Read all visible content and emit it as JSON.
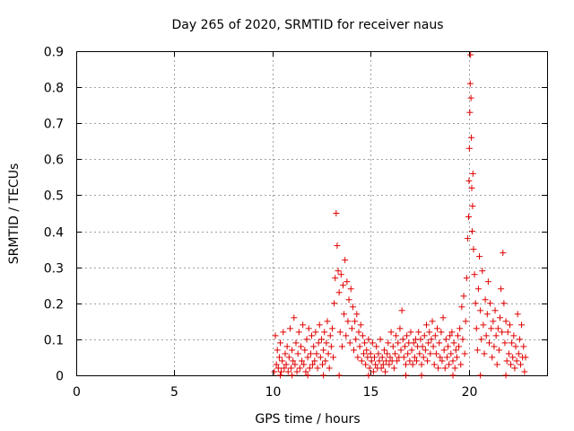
{
  "chart_data": {
    "type": "scatter",
    "title": "Day 265 of 2020, SRMTID for receiver naus",
    "xlabel": "GPS time / hours",
    "ylabel": "SRMTID / TECUs",
    "xlim": [
      0,
      24
    ],
    "ylim": [
      0,
      0.9
    ],
    "xticks": [
      0,
      5,
      10,
      15,
      20
    ],
    "yticks": [
      0,
      0.1,
      0.2,
      0.3,
      0.4,
      0.5,
      0.6,
      0.7,
      0.8,
      0.9
    ],
    "ytick_labels": [
      "0",
      "0.1",
      "0.2",
      "0.3",
      "0.4",
      "0.5",
      "0.6",
      "0.7",
      "0.8",
      "0.9"
    ],
    "grid": true,
    "marker": "+",
    "color": "#e00000",
    "series": [
      {
        "name": "SRMTID",
        "points": [
          [
            10.1,
            0.01
          ],
          [
            10.15,
            0.11
          ],
          [
            10.2,
            0.03
          ],
          [
            10.25,
            0.07
          ],
          [
            10.3,
            0.02
          ],
          [
            10.35,
            0.05
          ],
          [
            10.4,
            0.09
          ],
          [
            10.45,
            0.01
          ],
          [
            10.5,
            0.04
          ],
          [
            10.55,
            0.12
          ],
          [
            10.6,
            0.02
          ],
          [
            10.65,
            0.06
          ],
          [
            10.7,
            0.03
          ],
          [
            10.75,
            0.08
          ],
          [
            10.8,
            0.01
          ],
          [
            10.85,
            0.05
          ],
          [
            10.9,
            0.13
          ],
          [
            10.95,
            0.02
          ],
          [
            11.0,
            0.07
          ],
          [
            11.05,
            0.04
          ],
          [
            11.1,
            0.16
          ],
          [
            11.15,
            0.03
          ],
          [
            11.2,
            0.09
          ],
          [
            11.25,
            0.01
          ],
          [
            11.3,
            0.06
          ],
          [
            11.35,
            0.12
          ],
          [
            11.4,
            0.02
          ],
          [
            11.45,
            0.08
          ],
          [
            11.5,
            0.04
          ],
          [
            11.55,
            0.14
          ],
          [
            11.6,
            0.03
          ],
          [
            11.65,
            0.07
          ],
          [
            11.7,
            0.01
          ],
          [
            11.75,
            0.1
          ],
          [
            11.8,
            0.05
          ],
          [
            11.85,
            0.13
          ],
          [
            11.9,
            0.02
          ],
          [
            11.95,
            0.06
          ],
          [
            12.0,
            0.11
          ],
          [
            12.05,
            0.03
          ],
          [
            12.1,
            0.08
          ],
          [
            12.15,
            0.04
          ],
          [
            12.2,
            0.12
          ],
          [
            12.25,
            0.06
          ],
          [
            12.3,
            0.02
          ],
          [
            12.35,
            0.09
          ],
          [
            12.4,
            0.14
          ],
          [
            12.45,
            0.05
          ],
          [
            12.5,
            0.1
          ],
          [
            12.55,
            0.03
          ],
          [
            12.6,
            0.07
          ],
          [
            12.65,
            0.12
          ],
          [
            12.7,
            0.04
          ],
          [
            12.75,
            0.09
          ],
          [
            12.8,
            0.15
          ],
          [
            12.85,
            0.06
          ],
          [
            12.9,
            0.02
          ],
          [
            12.95,
            0.11
          ],
          [
            13.0,
            0.08
          ],
          [
            13.05,
            0.13
          ],
          [
            13.1,
            0.05
          ],
          [
            13.15,
            0.2
          ],
          [
            13.2,
            0.27
          ],
          [
            13.25,
            0.45
          ],
          [
            13.3,
            0.36
          ],
          [
            13.35,
            0.29
          ],
          [
            13.4,
            0.23
          ],
          [
            13.45,
            0.12
          ],
          [
            13.5,
            0.28
          ],
          [
            13.55,
            0.08
          ],
          [
            13.6,
            0.25
          ],
          [
            13.65,
            0.17
          ],
          [
            13.7,
            0.32
          ],
          [
            13.75,
            0.11
          ],
          [
            13.8,
            0.26
          ],
          [
            13.85,
            0.15
          ],
          [
            13.9,
            0.21
          ],
          [
            13.95,
            0.09
          ],
          [
            14.0,
            0.24
          ],
          [
            14.05,
            0.13
          ],
          [
            14.1,
            0.19
          ],
          [
            14.15,
            0.07
          ],
          [
            14.2,
            0.15
          ],
          [
            14.25,
            0.1
          ],
          [
            14.3,
            0.17
          ],
          [
            14.35,
            0.05
          ],
          [
            14.4,
            0.12
          ],
          [
            14.45,
            0.08
          ],
          [
            14.5,
            0.14
          ],
          [
            14.55,
            0.04
          ],
          [
            14.6,
            0.11
          ],
          [
            14.65,
            0.06
          ],
          [
            14.7,
            0.09
          ],
          [
            14.75,
            0.03
          ],
          [
            14.8,
            0.07
          ],
          [
            14.85,
            0.05
          ],
          [
            14.9,
            0.1
          ],
          [
            14.95,
            0.02
          ],
          [
            15.0,
            0.06
          ],
          [
            15.05,
            0.04
          ],
          [
            15.1,
            0.09
          ],
          [
            15.15,
            0.01
          ],
          [
            15.2,
            0.05
          ],
          [
            15.25,
            0.03
          ],
          [
            15.3,
            0.08
          ],
          [
            15.35,
            0.02
          ],
          [
            15.4,
            0.06
          ],
          [
            15.45,
            0.04
          ],
          [
            15.5,
            0.1
          ],
          [
            15.55,
            0.02
          ],
          [
            15.6,
            0.05
          ],
          [
            15.65,
            0.03
          ],
          [
            15.7,
            0.07
          ],
          [
            15.75,
            0.01
          ],
          [
            15.8,
            0.04
          ],
          [
            15.85,
            0.06
          ],
          [
            15.9,
            0.09
          ],
          [
            15.95,
            0.03
          ],
          [
            16.0,
            0.05
          ],
          [
            16.05,
            0.12
          ],
          [
            16.1,
            0.04
          ],
          [
            16.15,
            0.08
          ],
          [
            16.2,
            0.02
          ],
          [
            16.25,
            0.06
          ],
          [
            16.3,
            0.11
          ],
          [
            16.35,
            0.04
          ],
          [
            16.4,
            0.09
          ],
          [
            16.45,
            0.05
          ],
          [
            16.5,
            0.13
          ],
          [
            16.55,
            0.07
          ],
          [
            16.6,
            0.18
          ],
          [
            16.65,
            0.1
          ],
          [
            16.7,
            0.05
          ],
          [
            16.75,
            0.08
          ],
          [
            16.8,
            0.03
          ],
          [
            16.85,
            0.11
          ],
          [
            16.9,
            0.06
          ],
          [
            16.95,
            0.09
          ],
          [
            17.0,
            0.04
          ],
          [
            17.05,
            0.12
          ],
          [
            17.1,
            0.07
          ],
          [
            17.15,
            0.03
          ],
          [
            17.2,
            0.09
          ],
          [
            17.25,
            0.05
          ],
          [
            17.3,
            0.1
          ],
          [
            17.35,
            0.04
          ],
          [
            17.4,
            0.08
          ],
          [
            17.45,
            0.12
          ],
          [
            17.5,
            0.06
          ],
          [
            17.55,
            0.1
          ],
          [
            17.6,
            0.03
          ],
          [
            17.65,
            0.08
          ],
          [
            17.7,
            0.05
          ],
          [
            17.75,
            0.11
          ],
          [
            17.8,
            0.07
          ],
          [
            17.85,
            0.14
          ],
          [
            17.9,
            0.04
          ],
          [
            17.95,
            0.09
          ],
          [
            18.0,
            0.12
          ],
          [
            18.05,
            0.06
          ],
          [
            18.1,
            0.1
          ],
          [
            18.15,
            0.15
          ],
          [
            18.2,
            0.08
          ],
          [
            18.25,
            0.03
          ],
          [
            18.3,
            0.11
          ],
          [
            18.35,
            0.06
          ],
          [
            18.4,
            0.13
          ],
          [
            18.45,
            0.02
          ],
          [
            18.5,
            0.09
          ],
          [
            18.55,
            0.05
          ],
          [
            18.6,
            0.12
          ],
          [
            18.65,
            0.04
          ],
          [
            18.7,
            0.16
          ],
          [
            18.75,
            0.07
          ],
          [
            18.8,
            0.02
          ],
          [
            18.85,
            0.1
          ],
          [
            18.9,
            0.05
          ],
          [
            18.95,
            0.08
          ],
          [
            19.0,
            0.03
          ],
          [
            19.05,
            0.11
          ],
          [
            19.1,
            0.06
          ],
          [
            19.15,
            0.12
          ],
          [
            19.2,
            0.04
          ],
          [
            19.25,
            0.09
          ],
          [
            19.3,
            0.02
          ],
          [
            19.35,
            0.07
          ],
          [
            19.4,
            0.05
          ],
          [
            19.45,
            0.11
          ],
          [
            19.5,
            0.08
          ],
          [
            19.55,
            0.13
          ],
          [
            19.6,
            0.03
          ],
          [
            19.65,
            0.19
          ],
          [
            19.7,
            0.1
          ],
          [
            19.75,
            0.22
          ],
          [
            19.8,
            0.06
          ],
          [
            19.85,
            0.15
          ],
          [
            19.9,
            0.27
          ],
          [
            19.95,
            0.38
          ],
          [
            20.0,
            0.44
          ],
          [
            20.02,
            0.54
          ],
          [
            20.04,
            0.63
          ],
          [
            20.06,
            0.73
          ],
          [
            20.08,
            0.81
          ],
          [
            20.1,
            0.89
          ],
          [
            20.12,
            0.77
          ],
          [
            20.14,
            0.66
          ],
          [
            20.16,
            0.52
          ],
          [
            20.18,
            0.4
          ],
          [
            20.2,
            0.47
          ],
          [
            20.22,
            0.56
          ],
          [
            20.25,
            0.35
          ],
          [
            20.3,
            0.28
          ],
          [
            20.35,
            0.2
          ],
          [
            20.4,
            0.13
          ],
          [
            20.45,
            0.07
          ],
          [
            20.5,
            0.24
          ],
          [
            20.55,
            0.33
          ],
          [
            20.6,
            0.18
          ],
          [
            20.65,
            0.1
          ],
          [
            20.7,
            0.29
          ],
          [
            20.75,
            0.14
          ],
          [
            20.8,
            0.06
          ],
          [
            20.85,
            0.21
          ],
          [
            20.9,
            0.11
          ],
          [
            20.95,
            0.17
          ],
          [
            21.0,
            0.26
          ],
          [
            21.05,
            0.09
          ],
          [
            21.1,
            0.2
          ],
          [
            21.15,
            0.13
          ],
          [
            21.2,
            0.05
          ],
          [
            21.25,
            0.15
          ],
          [
            21.3,
            0.08
          ],
          [
            21.35,
            0.18
          ],
          [
            21.4,
            0.11
          ],
          [
            21.45,
            0.03
          ],
          [
            21.5,
            0.13
          ],
          [
            21.55,
            0.07
          ],
          [
            21.6,
            0.16
          ],
          [
            21.65,
            0.24
          ],
          [
            21.7,
            0.12
          ],
          [
            21.75,
            0.34
          ],
          [
            21.8,
            0.2
          ],
          [
            21.85,
            0.09
          ],
          [
            21.9,
            0.15
          ],
          [
            21.95,
            0.04
          ],
          [
            22.0,
            0.12
          ],
          [
            22.05,
            0.06
          ],
          [
            22.1,
            0.14
          ],
          [
            22.15,
            0.03
          ],
          [
            22.2,
            0.09
          ],
          [
            22.25,
            0.05
          ],
          [
            22.3,
            0.11
          ],
          [
            22.35,
            0.02
          ],
          [
            22.4,
            0.08
          ],
          [
            22.45,
            0.04
          ],
          [
            22.5,
            0.17
          ],
          [
            22.55,
            0.06
          ],
          [
            22.6,
            0.1
          ],
          [
            22.65,
            0.03
          ],
          [
            22.7,
            0.14
          ],
          [
            22.75,
            0.05
          ],
          [
            22.8,
            0.08
          ],
          [
            22.85,
            0.01
          ],
          [
            22.9,
            0.05
          ],
          [
            10.4,
            0.0
          ],
          [
            11.0,
            0.0
          ],
          [
            11.8,
            0.0
          ],
          [
            12.6,
            0.0
          ],
          [
            13.4,
            0.0
          ],
          [
            14.9,
            0.0
          ],
          [
            16.8,
            0.0
          ],
          [
            17.6,
            0.0
          ],
          [
            19.2,
            0.0
          ],
          [
            20.6,
            0.0
          ],
          [
            21.9,
            0.0
          ]
        ]
      }
    ]
  }
}
